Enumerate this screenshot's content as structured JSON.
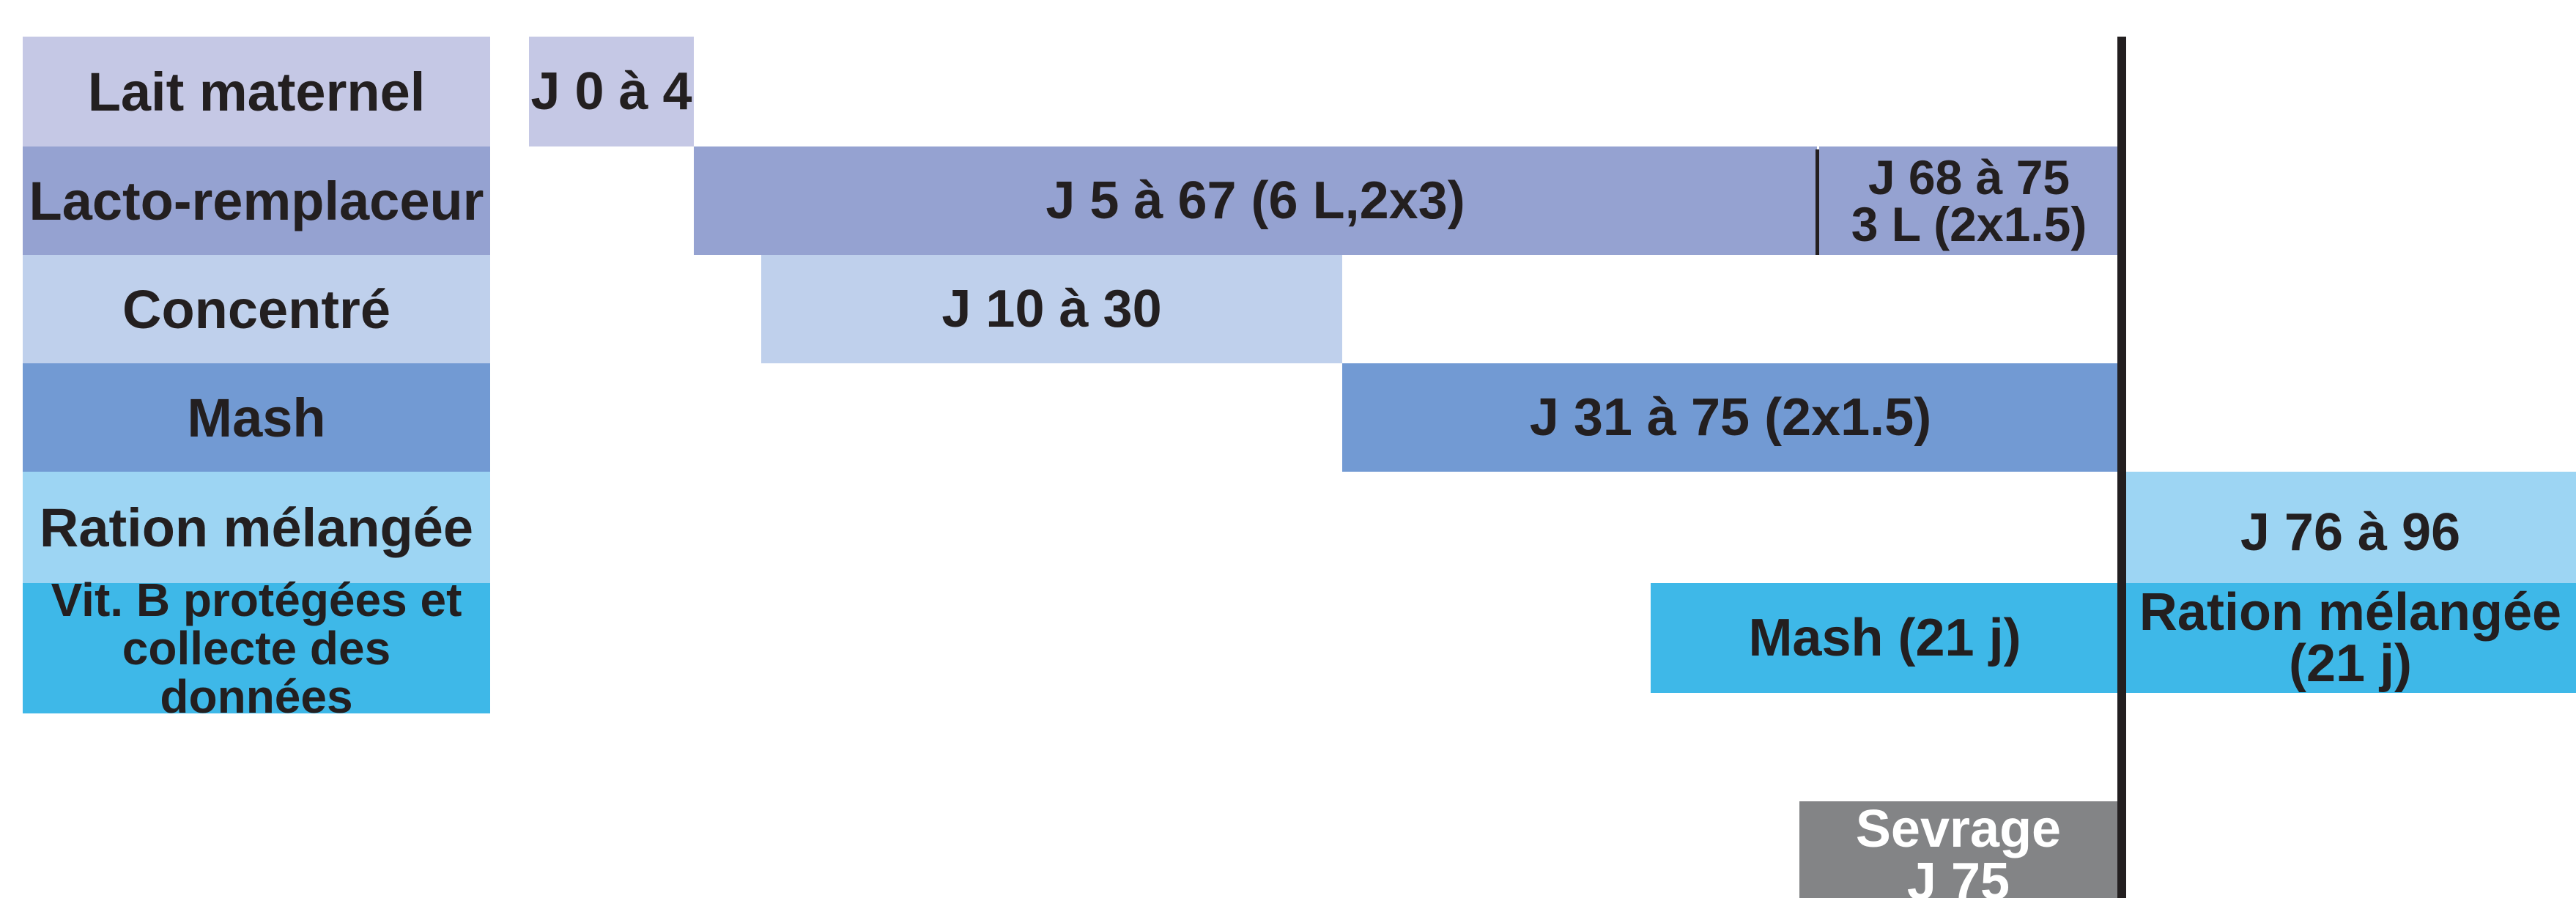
{
  "colors": {
    "lait": "#c5c8e5",
    "lacto": "#95a2d1",
    "concentre": "#bfd0ec",
    "mash": "#729ad3",
    "ration": "#9dd5f3",
    "vitb": "#3eb8e8",
    "sevrage": "#838486",
    "text": "#231f20",
    "sevrage_text": "#ffffff"
  },
  "rows": {
    "lait_maternel": "Lait maternel",
    "lacto_remplaceur": "Lacto-remplaceur",
    "concentre": "Concentré",
    "mash": "Mash",
    "ration_melangee": "Ration mélangée",
    "vitb_line1": "Vit. B protégées et",
    "vitb_line2": "collecte des données"
  },
  "bars": {
    "lait": "J 0 à 4",
    "lacto_main": "J 5 à 67 (6 L,2x3)",
    "lacto_end_line1": "J 68 à 75",
    "lacto_end_line2": "3 L (2x1.5)",
    "concentre": "J 10 à 30",
    "mash": "J 31 à 75 (2x1.5)",
    "ration": "J 76 à 96",
    "vitb_mash": "Mash (21 j)",
    "vitb_ration_line1": "Ration mélangée",
    "vitb_ration_line2": "(21 j)"
  },
  "sevrage": {
    "line1": "Sevrage",
    "line2": "J 75"
  }
}
